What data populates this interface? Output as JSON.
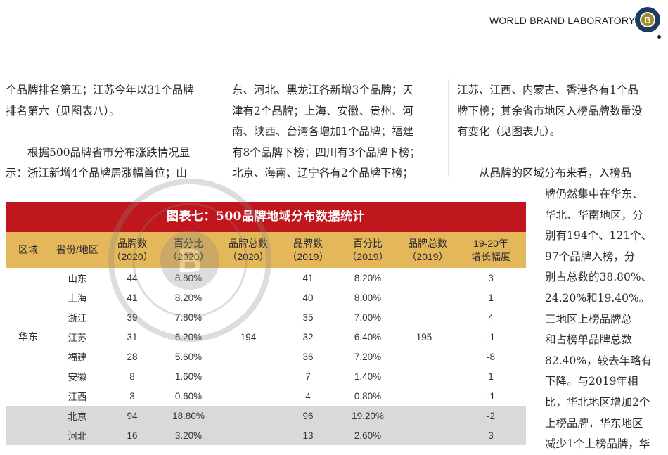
{
  "header": {
    "title": "WORLD BRAND LABORATORY",
    "logo_text": "WBL"
  },
  "columns": {
    "col1": [
      "个品牌排名第五；江苏今年以31个品牌",
      "排名第六（见图表八）。",
      "",
      "根据500品牌省市分布涨跌情况显",
      "示：浙江新增4个品牌居涨幅首位；山"
    ],
    "col2": [
      "东、河北、黑龙江各新增3个品牌；天",
      "津有2个品牌；上海、安徽、贵州、河",
      "南、陕西、台湾各增加1个品牌；福建",
      "有8个品牌下榜；四川有3个品牌下榜；",
      "北京、海南、辽宁各有2个品牌下榜；"
    ],
    "col3": [
      "江苏、江西、内蒙古、香港各有1个品",
      "牌下榜；其余省市地区入榜品牌数量没",
      "有变化（见图表九）。",
      "",
      "从品牌的区域分布来看，入榜品"
    ],
    "col3_narrow": [
      "牌仍然集中在华东、",
      "华北、华南地区，分",
      "别有194个、121个、",
      "97个品牌入榜，分",
      "别占总数的38.80%、",
      "24.20%和19.40%。",
      "三地区上榜品牌总",
      "和占榜单品牌总数",
      "82.40%，较去年略有",
      "下降。与2019年相",
      "比，华北地区增加2个",
      "上榜品牌，华东地区",
      "减少1个上榜品牌，华"
    ]
  },
  "table": {
    "title": "图表七：500品牌地域分布数据统计",
    "headers": [
      [
        "区域"
      ],
      [
        "省份/地区"
      ],
      [
        "品牌数",
        "（2020）"
      ],
      [
        "百分比",
        "（2020）"
      ],
      [
        "品牌总数",
        "（2020）"
      ],
      [
        "品牌数",
        "（2019）"
      ],
      [
        "百分比",
        "（2019）"
      ],
      [
        "品牌总数",
        "（2019）"
      ],
      [
        "19-20年",
        "增长幅度"
      ]
    ],
    "group": {
      "region": "华东",
      "total_2020": "194",
      "total_2019": "195"
    },
    "rows": [
      {
        "province": "山东",
        "n2020": "44",
        "p2020": "8.80%",
        "n2019": "41",
        "p2019": "8.20%",
        "growth": "3"
      },
      {
        "province": "上海",
        "n2020": "41",
        "p2020": "8.20%",
        "n2019": "40",
        "p2019": "8.00%",
        "growth": "1"
      },
      {
        "province": "浙江",
        "n2020": "39",
        "p2020": "7.80%",
        "n2019": "35",
        "p2019": "7.00%",
        "growth": "4"
      },
      {
        "province": "江苏",
        "n2020": "31",
        "p2020": "6.20%",
        "n2019": "32",
        "p2019": "6.40%",
        "growth": "-1"
      },
      {
        "province": "福建",
        "n2020": "28",
        "p2020": "5.60%",
        "n2019": "36",
        "p2019": "7.20%",
        "growth": "-8"
      },
      {
        "province": "安徽",
        "n2020": "8",
        "p2020": "1.60%",
        "n2019": "7",
        "p2019": "1.40%",
        "growth": "1"
      },
      {
        "province": "江西",
        "n2020": "3",
        "p2020": "0.60%",
        "n2019": "4",
        "p2019": "0.80%",
        "growth": "-1"
      },
      {
        "province": "北京",
        "n2020": "94",
        "p2020": "18.80%",
        "n2019": "96",
        "p2019": "19.20%",
        "growth": "-2"
      },
      {
        "province": "河北",
        "n2020": "16",
        "p2020": "3.20%",
        "n2019": "13",
        "p2019": "2.60%",
        "growth": "3"
      }
    ]
  },
  "watermark_text": "WORLD BRAND LABORATORY (WBL)",
  "colors": {
    "title_red": "#c0161e",
    "header_gold": "#e4b75a",
    "grey_row": "#d9d9d9"
  }
}
